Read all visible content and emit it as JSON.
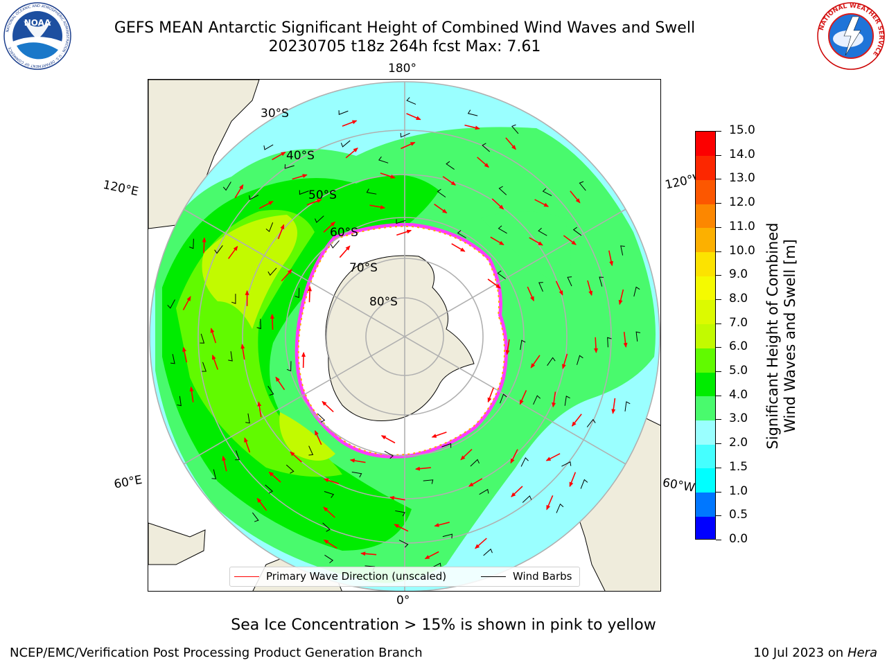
{
  "header": {
    "title_line1": "GEFS MEAN Antarctic Significant Height of Combined Wind Waves and Swell",
    "title_line2": "20230705 t18z 264h fcst   Max: 7.61"
  },
  "logos": {
    "left": {
      "text": "NOAA",
      "ring_text": "NATIONAL OCEANIC AND ATMOSPHERIC ADMINISTRATION · U.S. DEPARTMENT OF COMMERCE"
    },
    "right": {
      "ring_text": "NATIONAL WEATHER SERVICE"
    }
  },
  "map": {
    "projection": "south-polar-stereographic",
    "longitude_labels": {
      "top": "180°",
      "bottom": "0°",
      "upper_left": "120°E",
      "upper_right": "120°W",
      "lower_left": "60°E",
      "lower_right": "60°W"
    },
    "latitude_labels": [
      "30°S",
      "40°S",
      "50°S",
      "60°S",
      "70°S",
      "80°S"
    ],
    "colors": {
      "land": "#efecdc",
      "grid": "#b0b0b0",
      "coast": "#000000",
      "wave_arrow": "#ff0000",
      "wind_barb": "#000000"
    }
  },
  "colorbar": {
    "label_line1": "Significant Height of Combined",
    "label_line2": "Wind Waves and Swell [m]",
    "ticks": [
      "0.0",
      "0.5",
      "1.0",
      "1.5",
      "2.0",
      "3.0",
      "4.0",
      "5.0",
      "6.0",
      "7.0",
      "8.0",
      "9.0",
      "10.0",
      "11.0",
      "12.0",
      "13.0",
      "14.0",
      "15.0"
    ],
    "colors": [
      "#0000ff",
      "#0077ff",
      "#00ffff",
      "#45ffff",
      "#9affff",
      "#49fa6d",
      "#00ec00",
      "#61fa00",
      "#c2fa00",
      "#dcfa00",
      "#f5fa00",
      "#fce300",
      "#fcb000",
      "#fc8700",
      "#fc5700",
      "#fc2700",
      "#fc0000"
    ]
  },
  "legend": {
    "wave": "Primary Wave Direction (unscaled)",
    "wind": "Wind Barbs"
  },
  "note": "Sea Ice Concentration > 15% is shown in pink to yellow",
  "footer": {
    "left": "NCEP/EMC/Verification Post Processing Product Generation Branch",
    "right_date": "10 Jul 2023 on ",
    "right_host": "Hera"
  }
}
